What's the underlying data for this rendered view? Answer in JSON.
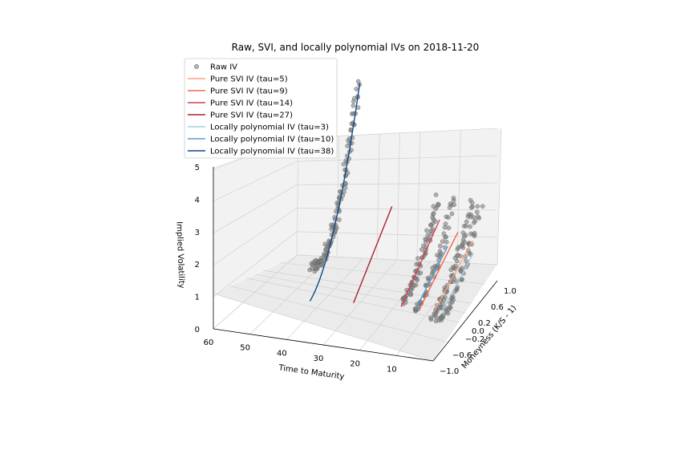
{
  "chart_data": {
    "type": "scatter3d",
    "title": "Raw, SVI, and locally polynomial IVs on 2018-11-20",
    "xlabel": "Time to Maturity",
    "ylabel": "Moneyness (K/S - 1)",
    "zlabel": "Implied Volatility",
    "xlim": [
      0,
      60
    ],
    "ylim": [
      -1.0,
      1.0
    ],
    "zlim": [
      0,
      5
    ],
    "x_ticks": [
      "60",
      "50",
      "40",
      "30",
      "20",
      "10"
    ],
    "x_tick_values": [
      60,
      50,
      40,
      30,
      20,
      10
    ],
    "y_ticks": [
      "−1.0",
      "−0.6",
      "−0.2",
      "0.0",
      "0.2",
      "0.6",
      "1.0"
    ],
    "y_tick_values": [
      -1.0,
      -0.6,
      -0.2,
      0.0,
      0.2,
      0.6,
      1.0
    ],
    "z_ticks": [
      "0",
      "1",
      "2",
      "3",
      "4",
      "5"
    ],
    "z_tick_values": [
      0,
      1,
      2,
      3,
      4,
      5
    ],
    "grid": true,
    "legend_position": "top-left",
    "legend": [
      {
        "label": "Raw IV",
        "kind": "marker",
        "color": "#808080"
      },
      {
        "label": "Pure SVI IV (tau=5)",
        "kind": "line",
        "color": "#f4a582"
      },
      {
        "label": "Pure SVI IV (tau=9)",
        "kind": "line",
        "color": "#ef6a4c"
      },
      {
        "label": "Pure SVI IV (tau=14)",
        "kind": "line",
        "color": "#d6404e"
      },
      {
        "label": "Pure SVI IV (tau=27)",
        "kind": "line",
        "color": "#ab2234"
      },
      {
        "label": "Locally polynomial IV (tau=3)",
        "kind": "line",
        "color": "#a6cee3"
      },
      {
        "label": "Locally polynomial IV (tau=10)",
        "kind": "line",
        "color": "#5b9bd0"
      },
      {
        "label": "Locally polynomial IV (tau=38)",
        "kind": "line",
        "color": "#0d4a8f"
      }
    ],
    "raw_iv_groups": [
      {
        "tau": 38,
        "m_min": -0.45,
        "m_max": 1.0,
        "n": 120
      },
      {
        "tau": 14,
        "m_min": -0.35,
        "m_max": 0.75,
        "n": 70
      },
      {
        "tau": 10,
        "m_min": -0.45,
        "m_max": 0.8,
        "n": 60
      },
      {
        "tau": 5,
        "m_min": -0.45,
        "m_max": 0.8,
        "n": 70
      },
      {
        "tau": 3,
        "m_min": -0.5,
        "m_max": 0.8,
        "n": 60
      }
    ],
    "svi_lines": [
      {
        "tau": 5,
        "m": [
          -0.4,
          0.8
        ],
        "iv": [
          0.7,
          1.4
        ]
      },
      {
        "tau": 9,
        "m": [
          -0.4,
          0.8
        ],
        "iv": [
          0.7,
          1.6
        ]
      },
      {
        "tau": 14,
        "m": [
          -0.4,
          0.8
        ],
        "iv": [
          0.7,
          1.9
        ]
      },
      {
        "tau": 27,
        "m": [
          -0.4,
          0.8
        ],
        "iv": [
          0.6,
          2.1
        ]
      }
    ],
    "locpoly_lines": [
      {
        "tau": 3,
        "m": [
          -0.4,
          0.6
        ],
        "iv": [
          0.7,
          1.3
        ]
      },
      {
        "tau": 10,
        "m": [
          -0.4,
          0.6
        ],
        "iv": [
          0.7,
          1.4
        ]
      },
      {
        "tau": 38,
        "m": [
          -0.5,
          1.05
        ],
        "iv": [
          0.6,
          5.4
        ]
      }
    ]
  }
}
